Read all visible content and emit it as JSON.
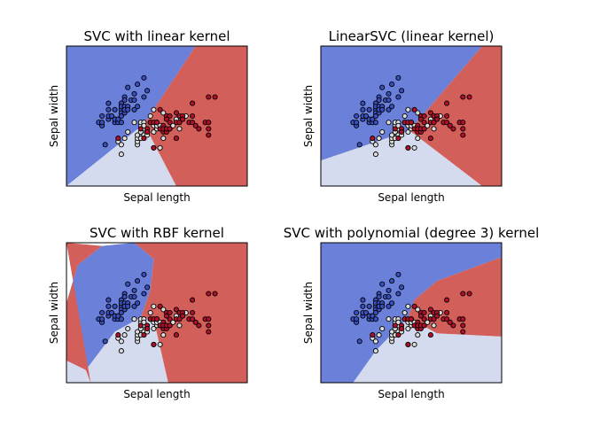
{
  "colors": {
    "class_0": "#6b80d9",
    "class_1": "#d4dbef",
    "class_2": "#d35f5a",
    "point_0": "#3a4fbf",
    "point_1": "#dcdcdc",
    "point_2": "#b0102a",
    "edge": "#000000"
  },
  "points": {
    "class_0": [
      [
        4.3,
        3.0
      ],
      [
        4.4,
        2.9
      ],
      [
        4.4,
        3.0
      ],
      [
        4.4,
        3.2
      ],
      [
        4.5,
        2.3
      ],
      [
        4.6,
        3.1
      ],
      [
        4.6,
        3.4
      ],
      [
        4.6,
        3.6
      ],
      [
        4.6,
        3.2
      ],
      [
        4.7,
        3.2
      ],
      [
        4.8,
        3.4
      ],
      [
        4.8,
        3.0
      ],
      [
        4.8,
        3.1
      ],
      [
        4.9,
        3.0
      ],
      [
        4.9,
        3.1
      ],
      [
        5.0,
        3.6
      ],
      [
        5.0,
        3.4
      ],
      [
        5.0,
        3.0
      ],
      [
        5.0,
        3.3
      ],
      [
        5.0,
        3.2
      ],
      [
        5.0,
        3.5
      ],
      [
        5.1,
        3.5
      ],
      [
        5.1,
        3.8
      ],
      [
        5.1,
        3.7
      ],
      [
        5.1,
        3.3
      ],
      [
        5.1,
        3.4
      ],
      [
        5.2,
        3.5
      ],
      [
        5.2,
        3.4
      ],
      [
        5.2,
        4.1
      ],
      [
        5.3,
        3.7
      ],
      [
        5.4,
        3.9
      ],
      [
        5.4,
        3.7
      ],
      [
        5.4,
        3.4
      ],
      [
        5.5,
        4.2
      ],
      [
        5.5,
        3.5
      ],
      [
        5.7,
        4.4
      ],
      [
        5.7,
        3.8
      ],
      [
        5.8,
        4.0
      ]
    ],
    "class_1": [
      [
        4.9,
        2.4
      ],
      [
        5.0,
        2.0
      ],
      [
        5.0,
        2.3
      ],
      [
        5.1,
        2.5
      ],
      [
        5.2,
        2.7
      ],
      [
        5.4,
        3.0
      ],
      [
        5.5,
        2.3
      ],
      [
        5.5,
        2.4
      ],
      [
        5.5,
        2.5
      ],
      [
        5.5,
        2.6
      ],
      [
        5.6,
        2.9
      ],
      [
        5.6,
        3.0
      ],
      [
        5.6,
        2.5
      ],
      [
        5.6,
        2.7
      ],
      [
        5.7,
        2.8
      ],
      [
        5.7,
        2.6
      ],
      [
        5.7,
        3.0
      ],
      [
        5.7,
        2.9
      ],
      [
        5.8,
        2.7
      ],
      [
        5.8,
        2.6
      ],
      [
        5.9,
        3.0
      ],
      [
        5.9,
        3.2
      ],
      [
        6.0,
        2.2
      ],
      [
        6.0,
        2.9
      ],
      [
        6.0,
        2.7
      ],
      [
        6.0,
        3.4
      ],
      [
        6.1,
        2.8
      ],
      [
        6.1,
        2.9
      ],
      [
        6.1,
        3.0
      ],
      [
        6.2,
        2.2
      ],
      [
        6.2,
        2.9
      ],
      [
        6.3,
        3.3
      ],
      [
        6.3,
        2.5
      ],
      [
        6.4,
        3.2
      ],
      [
        6.5,
        2.8
      ],
      [
        6.6,
        2.9
      ],
      [
        6.7,
        3.1
      ],
      [
        6.8,
        2.8
      ],
      [
        6.9,
        3.1
      ],
      [
        7.0,
        3.2
      ]
    ],
    "class_2": [
      [
        4.9,
        2.5
      ],
      [
        5.6,
        2.8
      ],
      [
        5.7,
        2.5
      ],
      [
        5.8,
        2.8
      ],
      [
        5.8,
        2.7
      ],
      [
        5.9,
        3.0
      ],
      [
        6.0,
        2.2
      ],
      [
        6.0,
        3.0
      ],
      [
        6.1,
        3.0
      ],
      [
        6.2,
        2.8
      ],
      [
        6.2,
        3.4
      ],
      [
        6.3,
        2.9
      ],
      [
        6.3,
        2.7
      ],
      [
        6.3,
        2.8
      ],
      [
        6.4,
        2.7
      ],
      [
        6.4,
        3.2
      ],
      [
        6.4,
        2.8
      ],
      [
        6.4,
        3.1
      ],
      [
        6.5,
        3.0
      ],
      [
        6.5,
        3.2
      ],
      [
        6.5,
        2.8
      ],
      [
        6.7,
        2.5
      ],
      [
        6.7,
        3.3
      ],
      [
        6.7,
        3.0
      ],
      [
        6.8,
        3.0
      ],
      [
        6.8,
        3.2
      ],
      [
        6.9,
        3.2
      ],
      [
        6.9,
        3.1
      ],
      [
        7.1,
        3.0
      ],
      [
        7.2,
        3.6
      ],
      [
        7.2,
        3.2
      ],
      [
        7.2,
        3.0
      ],
      [
        7.3,
        2.9
      ],
      [
        7.4,
        2.8
      ],
      [
        7.6,
        3.0
      ],
      [
        7.7,
        3.8
      ],
      [
        7.7,
        2.6
      ],
      [
        7.7,
        2.8
      ],
      [
        7.7,
        3.0
      ],
      [
        7.9,
        3.8
      ]
    ]
  },
  "chart_data": [
    {
      "type": "scatter",
      "title": "SVC with linear kernel",
      "xlabel": "Sepal length",
      "ylabel": "Sepal width",
      "xlim": [
        3.3,
        8.9
      ],
      "ylim": [
        1.0,
        5.4
      ],
      "ticks": "none",
      "background": "decision regions",
      "regions": {
        "class_0": [
          [
            3.3,
            5.4
          ],
          [
            7.3,
            5.4
          ],
          [
            5.7,
            2.95
          ],
          [
            3.3,
            1.0
          ]
        ],
        "class_1": [
          [
            3.3,
            1.0
          ],
          [
            5.7,
            2.95
          ],
          [
            6.7,
            1.0
          ]
        ],
        "class_2": [
          [
            7.3,
            5.4
          ],
          [
            8.9,
            5.4
          ],
          [
            8.9,
            1.0
          ],
          [
            6.7,
            1.0
          ],
          [
            5.7,
            2.95
          ]
        ]
      }
    },
    {
      "type": "scatter",
      "title": "LinearSVC (linear kernel)",
      "xlabel": "Sepal length",
      "ylabel": "Sepal width",
      "xlim": [
        3.3,
        8.9
      ],
      "ylim": [
        1.0,
        5.4
      ],
      "ticks": "none",
      "background": "decision regions",
      "regions": {
        "class_0": [
          [
            3.3,
            5.4
          ],
          [
            8.3,
            5.4
          ],
          [
            6.05,
            2.75
          ],
          [
            3.3,
            1.8
          ]
        ],
        "class_1": [
          [
            3.3,
            1.8
          ],
          [
            6.05,
            2.75
          ],
          [
            8.3,
            1.0
          ],
          [
            3.3,
            1.0
          ]
        ],
        "class_2": [
          [
            8.3,
            5.4
          ],
          [
            8.9,
            5.4
          ],
          [
            8.9,
            1.0
          ],
          [
            8.3,
            1.0
          ],
          [
            6.05,
            2.75
          ]
        ]
      }
    },
    {
      "type": "scatter",
      "title": "SVC with RBF kernel",
      "xlabel": "Sepal length",
      "ylabel": "Sepal width",
      "xlim": [
        3.3,
        8.9
      ],
      "ylim": [
        1.0,
        5.4
      ],
      "ticks": "none",
      "background": "decision regions",
      "regions": {
        "class_0": [
          [
            3.3,
            3.5
          ],
          [
            3.65,
            4.7
          ],
          [
            4.4,
            5.3
          ],
          [
            5.4,
            5.4
          ],
          [
            6.0,
            4.9
          ],
          [
            5.9,
            3.9
          ],
          [
            5.6,
            3.05
          ],
          [
            4.8,
            2.6
          ],
          [
            3.9,
            1.4
          ],
          [
            3.3,
            1.7
          ]
        ],
        "class_1": [
          [
            3.3,
            1.0
          ],
          [
            3.3,
            1.7
          ],
          [
            3.9,
            1.4
          ],
          [
            4.8,
            2.6
          ],
          [
            5.6,
            3.05
          ],
          [
            6.0,
            3.0
          ],
          [
            6.45,
            1.0
          ]
        ],
        "class_2": [
          [
            3.3,
            5.4
          ],
          [
            4.4,
            5.3
          ],
          [
            3.65,
            4.7
          ],
          [
            3.3,
            3.5
          ],
          [
            3.3,
            1.7
          ],
          [
            3.9,
            1.4
          ],
          [
            4.05,
            1.0
          ]
        ],
        "class_2_main": [
          [
            5.4,
            5.4
          ],
          [
            8.9,
            5.4
          ],
          [
            8.9,
            1.0
          ],
          [
            6.45,
            1.0
          ],
          [
            6.0,
            3.0
          ],
          [
            5.6,
            3.05
          ],
          [
            5.9,
            3.9
          ],
          [
            6.0,
            4.9
          ]
        ]
      }
    },
    {
      "type": "scatter",
      "title": "SVC with polynomial (degree 3) kernel",
      "xlabel": "Sepal length",
      "ylabel": "Sepal width",
      "xlim": [
        3.3,
        8.9
      ],
      "ylim": [
        1.0,
        5.4
      ],
      "ticks": "none",
      "background": "decision regions",
      "regions": {
        "class_0": [
          [
            3.3,
            5.4
          ],
          [
            8.9,
            5.4
          ],
          [
            8.9,
            4.95
          ],
          [
            6.9,
            4.2
          ],
          [
            6.2,
            3.6
          ],
          [
            6.0,
            3.05
          ],
          [
            5.0,
            2.0
          ],
          [
            4.3,
            1.0
          ],
          [
            3.3,
            1.0
          ]
        ],
        "class_1": [
          [
            4.3,
            1.0
          ],
          [
            5.0,
            2.0
          ],
          [
            6.0,
            3.05
          ],
          [
            6.9,
            2.55
          ],
          [
            8.9,
            2.45
          ],
          [
            8.9,
            1.0
          ]
        ],
        "class_2": [
          [
            8.9,
            4.95
          ],
          [
            6.9,
            4.2
          ],
          [
            6.2,
            3.6
          ],
          [
            6.0,
            3.05
          ],
          [
            6.9,
            2.55
          ],
          [
            8.9,
            2.45
          ]
        ]
      }
    }
  ]
}
